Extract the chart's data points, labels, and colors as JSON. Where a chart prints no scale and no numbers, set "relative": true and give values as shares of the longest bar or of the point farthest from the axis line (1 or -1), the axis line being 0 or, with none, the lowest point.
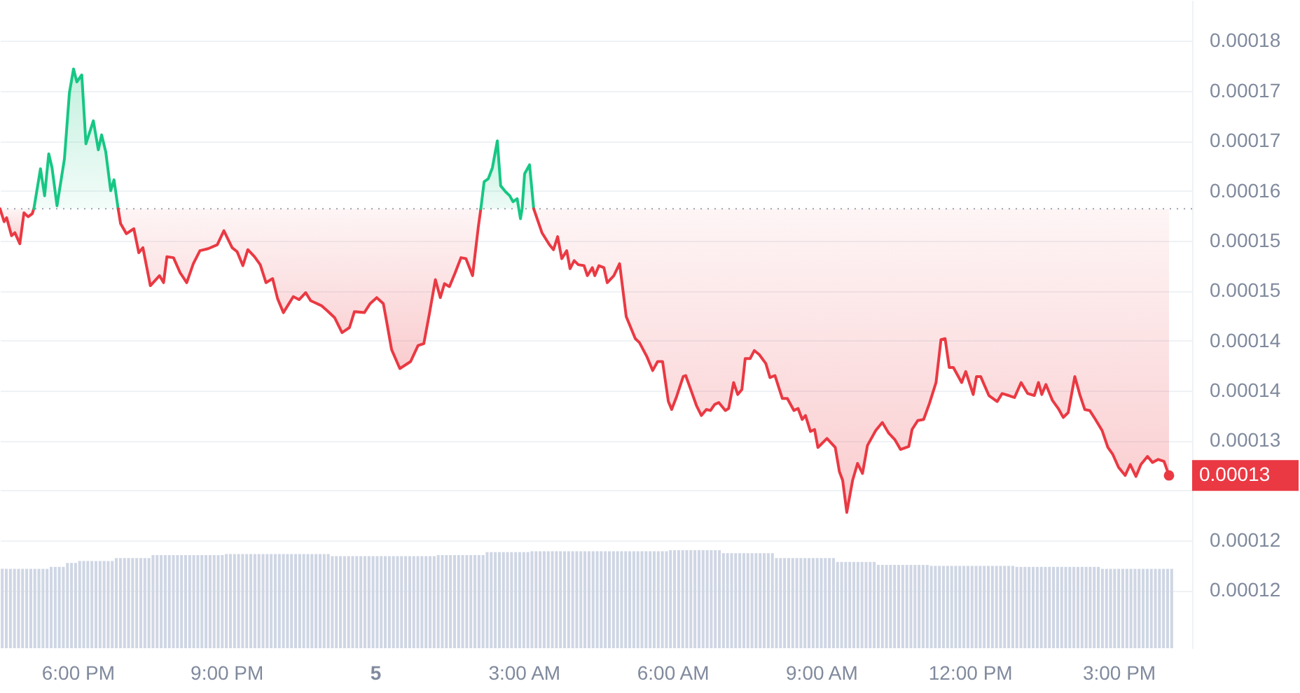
{
  "chart_data": [
    {
      "type": "line",
      "series": [
        {
          "color": "#ea3943",
          "x": [
            "--01-04T16:26",
            "--01-04T16:31",
            "--01-04T16:34",
            "--01-04T16:40",
            "--01-04T16:44",
            "--01-04T16:50",
            "--01-04T16:55",
            "--01-04T17:00",
            "--01-04T17:05",
            "--01-04T17:07"
          ],
          "values": [
            0.0001582,
            0.0001569,
            0.0001573,
            0.0001555,
            0.0001558,
            0.0001547,
            0.0001578,
            0.0001574,
            0.0001577,
            0.0001582
          ],
          "lower": [
            0.0001582,
            0.0001569,
            0.0001573,
            0.0001555,
            0.0001558,
            0.0001547,
            0.0001578,
            0.0001574,
            0.0001577,
            0.0001582
          ],
          "upper": [
            0.0001582,
            0.0001582,
            0.0001582,
            0.0001582,
            0.0001582,
            0.0001582,
            0.0001582,
            0.0001582,
            0.0001582,
            0.0001582
          ]
        },
        {
          "color": "#16c784",
          "x": [
            "--01-04T17:07",
            "--01-04T17:15",
            "--01-04T17:20",
            "--01-04T17:25",
            "--01-04T17:29",
            "--01-04T17:35",
            "--01-04T17:44",
            "--01-04T17:50",
            "--01-04T17:55",
            "--01-04T17:59",
            "--01-04T18:05",
            "--01-04T18:10",
            "--01-04T18:19",
            "--01-04T18:25",
            "--01-04T18:29",
            "--01-04T18:34",
            "--01-04T18:40",
            "--01-04T18:44",
            "--01-04T18:49"
          ],
          "values": [
            0.0001582,
            0.0001622,
            0.0001595,
            0.0001637,
            0.0001623,
            0.0001585,
            0.0001632,
            0.0001698,
            0.0001722,
            0.0001709,
            0.0001716,
            0.0001647,
            0.000167,
            0.0001641,
            0.0001656,
            0.0001639,
            0.00016,
            0.0001611,
            0.0001582
          ],
          "lower": [
            0.0001582,
            0.0001582,
            0.0001582,
            0.0001582,
            0.0001582,
            0.0001582,
            0.0001582,
            0.0001582,
            0.0001582,
            0.0001582,
            0.0001582,
            0.0001582,
            0.0001582,
            0.0001582,
            0.0001582,
            0.0001582,
            0.0001582,
            0.0001582,
            0.0001582
          ],
          "upper": [
            0.0001582,
            0.0001622,
            0.0001595,
            0.0001637,
            0.0001623,
            0.0001585,
            0.0001632,
            0.0001698,
            0.0001722,
            0.0001709,
            0.0001716,
            0.0001647,
            0.000167,
            0.0001641,
            0.0001656,
            0.0001639,
            0.00016,
            0.0001611,
            0.0001582
          ]
        },
        {
          "color": "#ea3943",
          "x": [
            "--01-04T18:49",
            "--01-04T18:52",
            "--01-04T18:59",
            "--01-04T19:08",
            "--01-04T19:14",
            "--01-04T19:19",
            "--01-04T19:28",
            "--01-04T19:39",
            "--01-04T19:44",
            "--01-04T19:48",
            "--01-04T19:56",
            "--01-04T20:04",
            "--01-04T20:12",
            "--01-04T20:20",
            "--01-04T20:28",
            "--01-04T20:38",
            "--01-04T20:49",
            "--01-04T20:57",
            "--01-04T21:07",
            "--01-04T21:13",
            "--01-04T21:20",
            "--01-04T21:26",
            "--01-04T21:34",
            "--01-04T21:41",
            "--01-04T21:48",
            "--01-04T21:56",
            "--01-04T22:02",
            "--01-04T22:09",
            "--01-04T22:21",
            "--01-04T22:28",
            "--01-04T22:36",
            "--01-04T22:42",
            "--01-04T22:55",
            "--01-04T23:02",
            "--01-04T23:11",
            "--01-04T23:20",
            "--01-04T23:29",
            "--01-04T23:35",
            "--01-04T23:47",
            "--01-04T23:54",
            "--01-05T00:02",
            "--01-05T00:10",
            "--01-05T00:14",
            "--01-05T00:20",
            "--01-05T00:30",
            "--01-05T00:43",
            "--01-05T00:52",
            "--01-05T00:59",
            "--01-05T01:06",
            "--01-05T01:13",
            "--01-05T01:19",
            "--01-05T01:24",
            "--01-05T01:30",
            "--01-05T01:37",
            "--01-05T01:44",
            "--01-05T01:50",
            "--01-05T01:58",
            "--01-05T02:05",
            "--01-05T02:08"
          ],
          "values": [
            0.0001582,
            0.0001567,
            0.0001557,
            0.0001562,
            0.0001538,
            0.0001543,
            0.0001505,
            0.0001515,
            0.0001508,
            0.0001534,
            0.0001533,
            0.0001518,
            0.0001508,
            0.0001527,
            0.000154,
            0.0001542,
            0.0001546,
            0.000156,
            0.0001543,
            0.0001539,
            0.0001525,
            0.0001541,
            0.0001534,
            0.0001526,
            0.0001508,
            0.0001512,
            0.0001492,
            0.0001478,
            0.0001494,
            0.0001491,
            0.0001498,
            0.000149,
            0.0001485,
            0.000148,
            0.0001473,
            0.0001458,
            0.0001463,
            0.0001479,
            0.0001478,
            0.0001487,
            0.0001493,
            0.0001487,
            0.0001469,
            0.0001441,
            0.0001422,
            0.0001429,
            0.0001445,
            0.0001447,
            0.0001478,
            0.0001511,
            0.0001493,
            0.0001507,
            0.0001504,
            0.0001518,
            0.0001533,
            0.0001532,
            0.0001515,
            0.0001564,
            0.0001582
          ],
          "lower": [
            0.0001582,
            0.0001567,
            0.0001557,
            0.0001562,
            0.0001538,
            0.0001543,
            0.0001505,
            0.0001515,
            0.0001508,
            0.0001534,
            0.0001533,
            0.0001518,
            0.0001508,
            0.0001527,
            0.000154,
            0.0001542,
            0.0001546,
            0.000156,
            0.0001543,
            0.0001539,
            0.0001525,
            0.0001541,
            0.0001534,
            0.0001526,
            0.0001508,
            0.0001512,
            0.0001492,
            0.0001478,
            0.0001494,
            0.0001491,
            0.0001498,
            0.000149,
            0.0001485,
            0.000148,
            0.0001473,
            0.0001458,
            0.0001463,
            0.0001479,
            0.0001478,
            0.0001487,
            0.0001493,
            0.0001487,
            0.0001469,
            0.0001441,
            0.0001422,
            0.0001429,
            0.0001445,
            0.0001447,
            0.0001478,
            0.0001511,
            0.0001493,
            0.0001507,
            0.0001504,
            0.0001518,
            0.0001533,
            0.0001532,
            0.0001515,
            0.0001564,
            0.0001582
          ],
          "upper": [
            0.0001582,
            0.0001582,
            0.0001582,
            0.0001582,
            0.0001582,
            0.0001582,
            0.0001582,
            0.0001582,
            0.0001582,
            0.0001582,
            0.0001582,
            0.0001582,
            0.0001582,
            0.0001582,
            0.0001582,
            0.0001582,
            0.0001582,
            0.0001582,
            0.0001582,
            0.0001582,
            0.0001582,
            0.0001582,
            0.0001582,
            0.0001582,
            0.0001582,
            0.0001582,
            0.0001582,
            0.0001582,
            0.0001582,
            0.0001582,
            0.0001582,
            0.0001582,
            0.0001582,
            0.0001582,
            0.0001582,
            0.0001582,
            0.0001582,
            0.0001582,
            0.0001582,
            0.0001582,
            0.0001582,
            0.0001582,
            0.0001582,
            0.0001582,
            0.0001582,
            0.0001582,
            0.0001582,
            0.0001582,
            0.0001582,
            0.0001582,
            0.0001582,
            0.0001582,
            0.0001582,
            0.0001582,
            0.0001582,
            0.0001582,
            0.0001582,
            0.0001582,
            0.0001582
          ]
        },
        {
          "color": "#16c784",
          "x": [
            "--01-05T02:08",
            "--01-05T02:12",
            "--01-05T02:17",
            "--01-05T02:22",
            "--01-05T02:28",
            "--01-05T02:32",
            "--01-05T02:38",
            "--01-05T02:43",
            "--01-05T02:47",
            "--01-05T02:52",
            "--01-05T02:54",
            "--01-05T02:56",
            "--01-05T02:58",
            "--01-05T03:01",
            "--01-05T03:07",
            "--01-05T03:12"
          ],
          "values": [
            0.0001582,
            0.0001609,
            0.0001612,
            0.0001623,
            0.000165,
            0.0001605,
            0.0001599,
            0.0001595,
            0.0001589,
            0.0001592,
            0.0001582,
            0.0001572,
            0.0001582,
            0.0001617,
            0.0001626,
            0.0001582
          ],
          "lower": [
            0.0001582,
            0.0001582,
            0.0001582,
            0.0001582,
            0.0001582,
            0.0001582,
            0.0001582,
            0.0001582,
            0.0001582,
            0.0001582,
            0.0001582,
            0.0001572,
            0.0001582,
            0.0001582,
            0.0001582,
            0.0001582
          ],
          "upper": [
            0.0001582,
            0.0001609,
            0.0001612,
            0.0001623,
            0.000165,
            0.0001605,
            0.0001599,
            0.0001595,
            0.0001589,
            0.0001592,
            0.0001582,
            0.0001582,
            0.0001582,
            0.0001617,
            0.0001626,
            0.0001582
          ]
        },
        {
          "color": "#ea3943",
          "x": [
            "--01-05T03:12",
            "--01-05T03:22",
            "--01-05T03:31",
            "--01-05T03:36",
            "--01-05T03:41",
            "--01-05T03:46",
            "--01-05T03:52",
            "--01-05T03:56",
            "--01-05T04:01",
            "--01-05T04:06",
            "--01-05T04:13",
            "--01-05T04:17",
            "--01-05T04:23",
            "--01-05T04:26",
            "--01-05T04:31",
            "--01-05T04:37",
            "--01-05T04:41",
            "--01-05T04:49",
            "--01-05T04:56",
            "--01-05T05:04",
            "--01-05T05:15",
            "--01-05T05:20",
            "--01-05T05:29",
            "--01-05T05:36",
            "--01-05T05:42",
            "--01-05T05:48",
            "--01-05T05:55",
            "--01-05T05:59",
            "--01-05T06:05",
            "--01-05T06:13",
            "--01-05T06:16",
            "--01-05T06:23",
            "--01-05T06:29",
            "--01-05T06:35",
            "--01-05T06:41",
            "--01-05T06:46",
            "--01-05T06:51",
            "--01-05T06:56",
            "--01-05T07:04",
            "--01-05T07:08",
            "--01-05T07:14",
            "--01-05T07:19",
            "--01-05T07:24",
            "--01-05T07:28",
            "--01-05T07:34",
            "--01-05T07:39",
            "--01-05T07:45",
            "--01-05T07:53",
            "--01-05T07:58",
            "--01-05T08:04",
            "--01-05T08:13",
            "--01-05T08:19",
            "--01-05T08:27",
            "--01-05T08:32",
            "--01-05T08:37",
            "--01-05T08:41",
            "--01-05T08:47",
            "--01-05T08:52",
            "--01-05T08:56",
            "--01-05T09:07",
            "--01-05T09:17",
            "--01-05T09:22",
            "--01-05T09:26",
            "--01-05T09:31",
            "--01-05T09:38",
            "--01-05T09:44",
            "--01-05T09:50",
            "--01-05T09:56",
            "--01-05T10:06",
            "--01-05T10:14",
            "--01-05T10:22",
            "--01-05T10:29",
            "--01-05T10:36",
            "--01-05T10:46",
            "--01-05T10:50",
            "--01-05T10:57",
            "--01-05T11:04",
            "--01-05T11:11",
            "--01-05T11:19",
            "--01-05T11:25",
            "--01-05T11:30",
            "--01-05T11:35",
            "--01-05T11:40",
            "--01-05T11:50",
            "--01-05T11:55",
            "--01-05T12:04",
            "--01-05T12:08",
            "--01-05T12:13",
            "--01-05T12:23",
            "--01-05T12:33",
            "--01-05T12:39",
            "--01-05T12:47",
            "--01-05T12:54",
            "--01-05T13:02",
            "--01-05T13:10",
            "--01-05T13:18",
            "--01-05T13:23",
            "--01-05T13:27",
            "--01-05T13:32",
            "--01-05T13:40",
            "--01-05T13:47",
            "--01-05T13:53",
            "--01-05T13:59",
            "--01-05T14:07",
            "--01-05T14:13",
            "--01-05T14:19",
            "--01-05T14:25",
            "--01-05T14:32",
            "--01-05T14:40",
            "--01-05T14:47",
            "--01-05T14:53",
            "--01-05T15:00",
            "--01-05T15:08",
            "--01-05T15:14",
            "--01-05T15:21",
            "--01-05T15:27",
            "--01-05T15:35",
            "--01-05T15:41",
            "--01-05T15:48",
            "--01-05T15:55",
            "--01-05T16:01"
          ],
          "values": [
            0.0001582,
            0.0001558,
            0.0001546,
            0.0001541,
            0.0001554,
            0.0001532,
            0.000154,
            0.0001522,
            0.000153,
            0.0001526,
            0.0001525,
            0.0001515,
            0.0001523,
            0.0001515,
            0.0001525,
            0.0001523,
            0.0001508,
            0.0001515,
            0.0001527,
            0.0001474,
            0.0001452,
            0.0001448,
            0.0001434,
            0.000142,
            0.0001429,
            0.0001429,
            0.0001389,
            0.0001381,
            0.0001394,
            0.0001414,
            0.0001415,
            0.0001399,
            0.0001385,
            0.0001375,
            0.0001381,
            0.000138,
            0.0001386,
            0.0001388,
            0.000138,
            0.0001382,
            0.0001408,
            0.0001396,
            0.0001401,
            0.0001432,
            0.0001432,
            0.000144,
            0.0001436,
            0.0001427,
            0.0001413,
            0.0001415,
            0.0001392,
            0.0001392,
            0.000138,
            0.0001382,
            0.0001371,
            0.0001375,
            0.0001359,
            0.0001361,
            0.0001343,
            0.0001352,
            0.0001343,
            0.0001319,
            0.000131,
            0.0001278,
            0.000131,
            0.0001327,
            0.0001317,
            0.0001345,
            0.000136,
            0.0001368,
            0.0001357,
            0.0001351,
            0.0001341,
            0.0001344,
            0.0001361,
            0.000137,
            0.0001371,
            0.0001387,
            0.0001408,
            0.0001451,
            0.0001452,
            0.0001423,
            0.0001423,
            0.0001408,
            0.0001419,
            0.0001396,
            0.0001414,
            0.0001414,
            0.0001395,
            0.0001389,
            0.0001397,
            0.0001395,
            0.0001393,
            0.0001408,
            0.0001397,
            0.0001395,
            0.0001408,
            0.0001396,
            0.0001406,
            0.000139,
            0.0001382,
            0.0001373,
            0.0001378,
            0.0001414,
            0.0001396,
            0.0001381,
            0.000138,
            0.0001371,
            0.000136,
            0.0001343,
            0.0001336,
            0.0001323,
            0.0001315,
            0.0001326,
            0.0001314,
            0.0001326,
            0.0001334,
            0.0001328,
            0.0001331,
            0.0001329,
            0.0001315
          ],
          "lower": [
            0.0001582,
            0.0001558,
            0.0001546,
            0.0001541,
            0.0001554,
            0.0001532,
            0.000154,
            0.0001522,
            0.000153,
            0.0001526,
            0.0001525,
            0.0001515,
            0.0001523,
            0.0001515,
            0.0001525,
            0.0001523,
            0.0001508,
            0.0001515,
            0.0001527,
            0.0001474,
            0.0001452,
            0.0001448,
            0.0001434,
            0.000142,
            0.0001429,
            0.0001429,
            0.0001389,
            0.0001381,
            0.0001394,
            0.0001414,
            0.0001415,
            0.0001399,
            0.0001385,
            0.0001375,
            0.0001381,
            0.000138,
            0.0001386,
            0.0001388,
            0.000138,
            0.0001382,
            0.0001408,
            0.0001396,
            0.0001401,
            0.0001432,
            0.0001432,
            0.000144,
            0.0001436,
            0.0001427,
            0.0001413,
            0.0001415,
            0.0001392,
            0.0001392,
            0.000138,
            0.0001382,
            0.0001371,
            0.0001375,
            0.0001359,
            0.0001361,
            0.0001343,
            0.0001352,
            0.0001343,
            0.0001319,
            0.000131,
            0.0001278,
            0.000131,
            0.0001327,
            0.0001317,
            0.0001345,
            0.000136,
            0.0001368,
            0.0001357,
            0.0001351,
            0.0001341,
            0.0001344,
            0.0001361,
            0.000137,
            0.0001371,
            0.0001387,
            0.0001408,
            0.0001451,
            0.0001452,
            0.0001423,
            0.0001423,
            0.0001408,
            0.0001419,
            0.0001396,
            0.0001414,
            0.0001414,
            0.0001395,
            0.0001389,
            0.0001397,
            0.0001395,
            0.0001393,
            0.0001408,
            0.0001397,
            0.0001395,
            0.0001408,
            0.0001396,
            0.0001406,
            0.000139,
            0.0001382,
            0.0001373,
            0.0001378,
            0.0001414,
            0.0001396,
            0.0001381,
            0.000138,
            0.0001371,
            0.000136,
            0.0001343,
            0.0001336,
            0.0001323,
            0.0001315,
            0.0001326,
            0.0001314,
            0.0001326,
            0.0001334,
            0.0001328,
            0.0001331,
            0.0001329,
            0.0001315
          ],
          "upper": [
            0.0001582,
            0.0001582,
            0.0001582,
            0.0001582,
            0.0001582,
            0.0001582,
            0.0001582,
            0.0001582,
            0.0001582,
            0.0001582,
            0.0001582,
            0.0001582,
            0.0001582,
            0.0001582,
            0.0001582,
            0.0001582,
            0.0001582,
            0.0001582,
            0.0001582,
            0.0001582,
            0.0001582,
            0.0001582,
            0.0001582,
            0.0001582,
            0.0001582,
            0.0001582,
            0.0001582,
            0.0001582,
            0.0001582,
            0.0001582,
            0.0001582,
            0.0001582,
            0.0001582,
            0.0001582,
            0.0001582,
            0.0001582,
            0.0001582,
            0.0001582,
            0.0001582,
            0.0001582,
            0.0001582,
            0.0001582,
            0.0001582,
            0.0001582,
            0.0001582,
            0.0001582,
            0.0001582,
            0.0001582,
            0.0001582,
            0.0001582,
            0.0001582,
            0.0001582,
            0.0001582,
            0.0001582,
            0.0001582,
            0.0001582,
            0.0001582,
            0.0001582,
            0.0001582,
            0.0001582,
            0.0001582,
            0.0001582,
            0.0001582,
            0.0001582,
            0.0001582,
            0.0001582,
            0.0001582,
            0.0001582,
            0.0001582,
            0.0001582,
            0.0001582,
            0.0001582,
            0.0001582,
            0.0001582,
            0.0001582,
            0.0001582,
            0.0001582,
            0.0001582,
            0.0001582,
            0.0001582,
            0.0001582,
            0.0001582,
            0.0001582,
            0.0001582,
            0.0001582,
            0.0001582,
            0.0001582,
            0.0001582,
            0.0001582,
            0.0001582,
            0.0001582,
            0.0001582,
            0.0001582,
            0.0001582,
            0.0001582,
            0.0001582,
            0.0001582,
            0.0001582,
            0.0001582,
            0.0001582,
            0.0001582,
            0.0001582,
            0.0001582,
            0.0001582,
            0.0001582,
            0.0001582,
            0.0001582,
            0.0001582,
            0.0001582,
            0.0001582,
            0.0001582,
            0.0001582,
            0.0001582,
            0.0001582,
            0.0001582,
            0.0001582,
            0.0001582,
            0.0001582,
            0.0001582,
            0.0001582,
            0.0001582
          ]
        }
      ],
      "xlim": [
        "--01-04T16:26",
        "--01-05T16:29"
      ],
      "xticks": [
        {
          "value": "--01-04T18:00",
          "label": "6:00 PM"
        },
        {
          "value": "--01-04T21:00",
          "label": "9:00 PM"
        },
        {
          "value": "--01-05T00:00",
          "label": "5"
        },
        {
          "value": "--01-05T03:00",
          "label": "3:00 AM"
        },
        {
          "value": "--01-05T06:00",
          "label": "6:00 AM"
        },
        {
          "value": "--01-05T09:00",
          "label": "9:00 AM"
        },
        {
          "value": "--01-05T12:00",
          "label": "12:00 PM"
        },
        {
          "value": "--01-05T15:00",
          "label": "3:00 PM"
        }
      ],
      "ylim": [
        0.0001142,
        0.0001791
      ],
      "yticks": [
        0.00012,
        {
          "value": 0.000125,
          "label": "0.00012"
        },
        {
          "value": 0.00013,
          "label": null
        },
        {
          "value": 0.000135,
          "label": "0.00013"
        },
        0.00014,
        {
          "value": 0.000145,
          "label": "0.00014"
        },
        0.00015,
        {
          "value": 0.000155,
          "label": "0.00015"
        },
        0.00016,
        {
          "value": 0.000165,
          "label": "0.00017"
        },
        0.00017,
        {
          "value": 0.000175,
          "label": "0.00018"
        }
      ],
      "grid": "y",
      "ref_lines": [
        {
          "axis": "y",
          "value": 0.0001582,
          "line_style": "dotted",
          "color": "#9aa0aa"
        }
      ],
      "annotations": [
        {
          "text": "0.00013",
          "x": "--01-05T16:01",
          "y": 0.0001315
        }
      ]
    },
    {
      "type": "bar",
      "relative": true,
      "color": "#cfd6e4",
      "categories": [
        null,
        null,
        null,
        null,
        null,
        null,
        null,
        null,
        null,
        null,
        null,
        null,
        null,
        null,
        null,
        null,
        null,
        null,
        null,
        null,
        null,
        null,
        null,
        null,
        null,
        null,
        null,
        null,
        null,
        null,
        null,
        null,
        null,
        null,
        null,
        null,
        null,
        null,
        null,
        null,
        null,
        null,
        null,
        null,
        null,
        null,
        null,
        null,
        null,
        null,
        null,
        null,
        null,
        null,
        null,
        null,
        null,
        null,
        null,
        null,
        null,
        null,
        null,
        null,
        null,
        null,
        null,
        null,
        null,
        null,
        null,
        null,
        null,
        null,
        null,
        null,
        null,
        null,
        null,
        null,
        null,
        null,
        null,
        null,
        null,
        null,
        null,
        null,
        null,
        null,
        null,
        null,
        null,
        null,
        null,
        null,
        null,
        null,
        null,
        null,
        null,
        null,
        null,
        null,
        null,
        null,
        null,
        null,
        null,
        null,
        null,
        null,
        null,
        null,
        null,
        null,
        null,
        null,
        null,
        null,
        null,
        null,
        null,
        null,
        null,
        null,
        null,
        null,
        null,
        null,
        null,
        null,
        null,
        null,
        null,
        null,
        null,
        null,
        null,
        null,
        null,
        null,
        null,
        null,
        null,
        null,
        null,
        null,
        null,
        null,
        null,
        null,
        null,
        null,
        null,
        null,
        null,
        null,
        null,
        null,
        null,
        null,
        null,
        null,
        null,
        null,
        null,
        null,
        null,
        null,
        null,
        null,
        null,
        null,
        null,
        null,
        null,
        null,
        null,
        null,
        null,
        null,
        null,
        null,
        null,
        null,
        null,
        null,
        null,
        null,
        null,
        null,
        null,
        null,
        null,
        null,
        null,
        null,
        null,
        null,
        null,
        null,
        null,
        null,
        null,
        null,
        null,
        null,
        null,
        null,
        null,
        null,
        null,
        null,
        null,
        null,
        null,
        null,
        null,
        null,
        null,
        null,
        null,
        null,
        null,
        null,
        null,
        null,
        null,
        null,
        null,
        null,
        null,
        null,
        null,
        null,
        null,
        null,
        null,
        null,
        null,
        null,
        null,
        null,
        null,
        null,
        null,
        null,
        null,
        null,
        null,
        null,
        null,
        null,
        null,
        null,
        null,
        null,
        null,
        null,
        null,
        null,
        null,
        null,
        null,
        null,
        null,
        null,
        null,
        null,
        null,
        null,
        null,
        null,
        null,
        null,
        null,
        null,
        null,
        null,
        null,
        null,
        null,
        null,
        null,
        null,
        null,
        null
      ],
      "values": [
        0.81,
        0.81,
        0.81,
        0.81,
        0.81,
        0.81,
        0.81,
        0.81,
        0.81,
        0.81,
        0.81,
        0.81,
        0.83,
        0.83,
        0.83,
        0.83,
        0.87,
        0.87,
        0.87,
        0.89,
        0.89,
        0.89,
        0.89,
        0.89,
        0.89,
        0.89,
        0.89,
        0.89,
        0.92,
        0.92,
        0.92,
        0.92,
        0.92,
        0.92,
        0.92,
        0.92,
        0.92,
        0.95,
        0.95,
        0.95,
        0.95,
        0.95,
        0.95,
        0.95,
        0.95,
        0.95,
        0.95,
        0.95,
        0.95,
        0.95,
        0.95,
        0.95,
        0.95,
        0.95,
        0.95,
        0.96,
        0.96,
        0.96,
        0.96,
        0.96,
        0.96,
        0.96,
        0.96,
        0.96,
        0.96,
        0.96,
        0.96,
        0.96,
        0.96,
        0.96,
        0.96,
        0.96,
        0.96,
        0.96,
        0.96,
        0.96,
        0.96,
        0.96,
        0.96,
        0.96,
        0.96,
        0.94,
        0.94,
        0.94,
        0.94,
        0.94,
        0.94,
        0.94,
        0.94,
        0.94,
        0.94,
        0.94,
        0.94,
        0.94,
        0.94,
        0.94,
        0.94,
        0.94,
        0.94,
        0.94,
        0.94,
        0.94,
        0.94,
        0.94,
        0.94,
        0.94,
        0.94,
        0.95,
        0.95,
        0.95,
        0.95,
        0.95,
        0.95,
        0.95,
        0.95,
        0.95,
        0.95,
        0.95,
        0.95,
        0.98,
        0.98,
        0.98,
        0.98,
        0.98,
        0.98,
        0.98,
        0.98,
        0.98,
        0.98,
        0.98,
        0.99,
        0.99,
        0.99,
        0.99,
        0.99,
        0.99,
        0.99,
        0.99,
        0.99,
        0.99,
        0.99,
        0.99,
        0.99,
        0.99,
        0.99,
        0.99,
        0.99,
        0.99,
        0.99,
        0.99,
        0.99,
        0.99,
        0.99,
        0.99,
        0.99,
        0.99,
        0.99,
        0.99,
        0.99,
        0.99,
        0.99,
        0.99,
        0.99,
        0.99,
        1,
        1,
        1,
        1,
        1,
        1,
        1,
        1,
        1,
        1,
        1,
        1,
        1,
        0.97,
        0.97,
        0.97,
        0.97,
        0.97,
        0.97,
        0.97,
        0.97,
        0.97,
        0.97,
        0.97,
        0.97,
        0.97,
        0.92,
        0.92,
        0.92,
        0.92,
        0.92,
        0.92,
        0.92,
        0.92,
        0.92,
        0.92,
        0.92,
        0.92,
        0.92,
        0.92,
        0.92,
        0.88,
        0.88,
        0.88,
        0.88,
        0.88,
        0.88,
        0.88,
        0.88,
        0.88,
        0.88,
        0.85,
        0.85,
        0.85,
        0.85,
        0.85,
        0.85,
        0.85,
        0.85,
        0.85,
        0.85,
        0.85,
        0.85,
        0.85,
        0.84,
        0.84,
        0.84,
        0.84,
        0.84,
        0.84,
        0.84,
        0.84,
        0.84,
        0.84,
        0.84,
        0.84,
        0.84,
        0.84,
        0.84,
        0.84,
        0.84,
        0.84,
        0.84,
        0.84,
        0.84,
        0.83,
        0.83,
        0.83,
        0.83,
        0.83,
        0.83,
        0.83,
        0.83,
        0.83,
        0.83,
        0.83,
        0.83,
        0.83,
        0.83,
        0.83,
        0.83,
        0.83,
        0.83,
        0.83,
        0.83,
        0.83,
        0.81,
        0.81,
        0.81,
        0.81,
        0.81,
        0.81,
        0.81,
        0.81,
        0.81,
        0.81,
        0.81,
        0.81,
        0.81,
        0.81,
        0.81,
        0.81,
        0.81,
        0.81
      ]
    }
  ]
}
